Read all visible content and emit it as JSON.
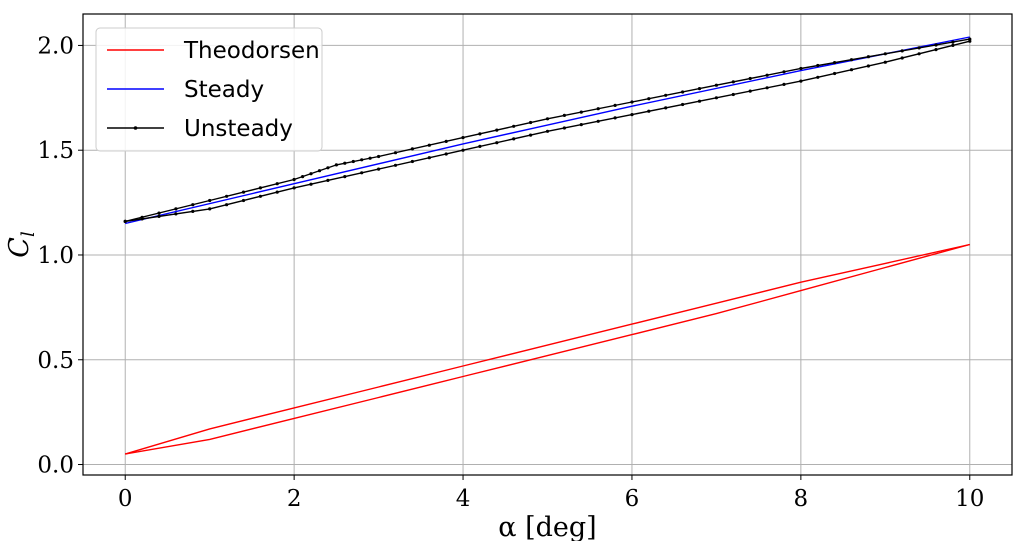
{
  "chart_data": {
    "type": "line",
    "xlabel": "α [deg]",
    "ylabel": "C_l",
    "xlim": [
      -0.5,
      10.5
    ],
    "ylim": [
      -0.05,
      2.15
    ],
    "xticks": [
      0,
      2,
      4,
      6,
      8,
      10
    ],
    "xtick_labels": [
      "0",
      "2",
      "4",
      "6",
      "8",
      "10"
    ],
    "yticks": [
      0.0,
      0.5,
      1.0,
      1.5,
      2.0
    ],
    "ytick_labels": [
      "0.0",
      "0.5",
      "1.0",
      "1.5",
      "2.0"
    ],
    "grid": true,
    "legend_position": "top-left",
    "series": [
      {
        "name": "Theodorsen",
        "color": "#ff0000",
        "marker": false,
        "upper_branch": {
          "x": [
            0,
            1,
            2,
            3,
            4,
            5,
            6,
            7,
            8,
            9,
            10
          ],
          "y": [
            0.05,
            0.17,
            0.27,
            0.37,
            0.47,
            0.57,
            0.67,
            0.77,
            0.87,
            0.96,
            1.05
          ]
        },
        "lower_branch": {
          "x": [
            0,
            1,
            2,
            3,
            4,
            5,
            6,
            7,
            8,
            9,
            10
          ],
          "y": [
            0.05,
            0.12,
            0.22,
            0.32,
            0.42,
            0.52,
            0.62,
            0.72,
            0.83,
            0.94,
            1.05
          ]
        }
      },
      {
        "name": "Steady",
        "color": "#0000ff",
        "marker": false,
        "x": [
          0,
          2,
          4,
          6,
          8,
          10
        ],
        "y": [
          1.15,
          1.34,
          1.53,
          1.71,
          1.88,
          2.04
        ]
      },
      {
        "name": "Unsteady",
        "color": "#000000",
        "marker": true,
        "upper_branch": {
          "x": [
            0,
            1,
            2,
            2.5,
            3,
            4,
            5,
            6,
            7,
            8,
            9,
            10
          ],
          "y": [
            1.16,
            1.26,
            1.36,
            1.43,
            1.47,
            1.56,
            1.65,
            1.73,
            1.81,
            1.89,
            1.96,
            2.03
          ]
        },
        "lower_branch": {
          "x": [
            0,
            1,
            2,
            3,
            4,
            5,
            6,
            7,
            8,
            9,
            10
          ],
          "y": [
            1.16,
            1.22,
            1.32,
            1.41,
            1.5,
            1.59,
            1.67,
            1.75,
            1.83,
            1.92,
            2.02
          ]
        }
      }
    ]
  }
}
